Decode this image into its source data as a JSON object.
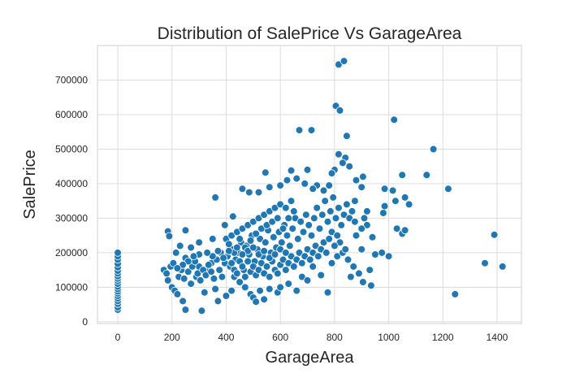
{
  "chart_data": {
    "type": "scatter",
    "title": "Distribution of SalePrice Vs GarageArea",
    "xlabel": "GarageArea",
    "ylabel": "SalePrice",
    "xlim": [
      -75,
      1490
    ],
    "ylim": [
      -5000,
      800000
    ],
    "xticks": [
      0,
      200,
      400,
      600,
      800,
      1000,
      1200,
      1400
    ],
    "yticks": [
      0,
      100000,
      200000,
      300000,
      400000,
      500000,
      600000,
      700000
    ],
    "grid": true,
    "point_color": "#1f77b4",
    "points": [
      [
        0,
        35000
      ],
      [
        0,
        42000
      ],
      [
        0,
        52000
      ],
      [
        0,
        60000
      ],
      [
        0,
        68000
      ],
      [
        0,
        75000
      ],
      [
        0,
        82000
      ],
      [
        0,
        88000
      ],
      [
        0,
        95000
      ],
      [
        0,
        102000
      ],
      [
        0,
        110000
      ],
      [
        0,
        118000
      ],
      [
        0,
        125000
      ],
      [
        0,
        132000
      ],
      [
        0,
        140000
      ],
      [
        0,
        148000
      ],
      [
        0,
        158000
      ],
      [
        0,
        168000
      ],
      [
        0,
        180000
      ],
      [
        0,
        190000
      ],
      [
        0,
        200000
      ],
      [
        815,
        745000
      ],
      [
        835,
        755000
      ],
      [
        805,
        625000
      ],
      [
        820,
        612000
      ],
      [
        1020,
        585000
      ],
      [
        670,
        555000
      ],
      [
        715,
        555000
      ],
      [
        845,
        538000
      ],
      [
        1165,
        500000
      ],
      [
        815,
        485000
      ],
      [
        840,
        475000
      ],
      [
        830,
        460000
      ],
      [
        855,
        450000
      ],
      [
        800,
        440000
      ],
      [
        700,
        440000
      ],
      [
        790,
        430000
      ],
      [
        640,
        438000
      ],
      [
        545,
        432000
      ],
      [
        1050,
        425000
      ],
      [
        1140,
        425000
      ],
      [
        1220,
        385000
      ],
      [
        1390,
        252000
      ],
      [
        1355,
        170000
      ],
      [
        1420,
        160000
      ],
      [
        1245,
        80000
      ],
      [
        1015,
        380000
      ],
      [
        985,
        385000
      ],
      [
        1060,
        360000
      ],
      [
        1025,
        350000
      ],
      [
        1075,
        340000
      ],
      [
        1030,
        270000
      ],
      [
        1050,
        255000
      ],
      [
        1060,
        265000
      ],
      [
        985,
        335000
      ],
      [
        980,
        315000
      ],
      [
        920,
        280000
      ],
      [
        940,
        245000
      ],
      [
        975,
        200000
      ],
      [
        1000,
        190000
      ],
      [
        950,
        195000
      ],
      [
        900,
        210000
      ],
      [
        930,
        150000
      ],
      [
        935,
        105000
      ],
      [
        905,
        115000
      ],
      [
        920,
        320000
      ],
      [
        905,
        420000
      ],
      [
        880,
        410000
      ],
      [
        900,
        390000
      ],
      [
        875,
        350000
      ],
      [
        360,
        360000
      ],
      [
        395,
        280000
      ],
      [
        425,
        305000
      ],
      [
        460,
        385000
      ],
      [
        485,
        375000
      ],
      [
        520,
        375000
      ],
      [
        560,
        390000
      ],
      [
        600,
        395000
      ],
      [
        625,
        410000
      ],
      [
        660,
        415000
      ],
      [
        690,
        400000
      ],
      [
        735,
        395000
      ],
      [
        760,
        380000
      ],
      [
        780,
        395000
      ],
      [
        720,
        385000
      ],
      [
        185,
        262000
      ],
      [
        190,
        248000
      ],
      [
        250,
        265000
      ],
      [
        300,
        230000
      ],
      [
        250,
        185000
      ],
      [
        215,
        200000
      ],
      [
        230,
        220000
      ],
      [
        270,
        215000
      ],
      [
        300,
        160000
      ],
      [
        350,
        240000
      ],
      [
        380,
        200000
      ],
      [
        345,
        170000
      ],
      [
        330,
        155000
      ],
      [
        170,
        150000
      ],
      [
        185,
        120000
      ],
      [
        200,
        100000
      ],
      [
        210,
        90000
      ],
      [
        220,
        80000
      ],
      [
        240,
        60000
      ],
      [
        250,
        35000
      ],
      [
        270,
        110000
      ],
      [
        290,
        130000
      ],
      [
        310,
        32000
      ],
      [
        320,
        85000
      ],
      [
        370,
        60000
      ],
      [
        360,
        95000
      ],
      [
        400,
        75000
      ],
      [
        420,
        90000
      ],
      [
        430,
        130000
      ],
      [
        450,
        115000
      ],
      [
        470,
        100000
      ],
      [
        490,
        80000
      ],
      [
        500,
        70000
      ],
      [
        510,
        58000
      ],
      [
        525,
        90000
      ],
      [
        540,
        65000
      ],
      [
        560,
        95000
      ],
      [
        590,
        85000
      ],
      [
        600,
        100000
      ],
      [
        630,
        110000
      ],
      [
        660,
        90000
      ],
      [
        680,
        130000
      ],
      [
        700,
        120000
      ],
      [
        720,
        160000
      ],
      [
        750,
        135000
      ],
      [
        775,
        85000
      ],
      [
        790,
        170000
      ],
      [
        810,
        190000
      ],
      [
        830,
        200000
      ],
      [
        850,
        180000
      ],
      [
        870,
        160000
      ],
      [
        890,
        140000
      ],
      [
        860,
        130000
      ],
      [
        840,
        210000
      ],
      [
        820,
        230000
      ],
      [
        880,
        250000
      ],
      [
        900,
        270000
      ],
      [
        910,
        300000
      ],
      [
        180,
        140000
      ],
      [
        195,
        160000
      ],
      [
        205,
        170000
      ],
      [
        225,
        130000
      ],
      [
        235,
        150000
      ],
      [
        245,
        125000
      ],
      [
        260,
        145000
      ],
      [
        275,
        160000
      ],
      [
        285,
        175000
      ],
      [
        295,
        140000
      ],
      [
        305,
        120000
      ],
      [
        315,
        150000
      ],
      [
        325,
        135000
      ],
      [
        335,
        165000
      ],
      [
        345,
        145000
      ],
      [
        355,
        125000
      ],
      [
        365,
        180000
      ],
      [
        375,
        150000
      ],
      [
        385,
        130000
      ],
      [
        395,
        170000
      ],
      [
        405,
        190000
      ],
      [
        415,
        160000
      ],
      [
        425,
        210000
      ],
      [
        435,
        180000
      ],
      [
        445,
        200000
      ],
      [
        455,
        230000
      ],
      [
        465,
        150000
      ],
      [
        475,
        220000
      ],
      [
        485,
        195000
      ],
      [
        495,
        250000
      ],
      [
        505,
        175000
      ],
      [
        515,
        210000
      ],
      [
        525,
        240000
      ],
      [
        535,
        190000
      ],
      [
        545,
        230000
      ],
      [
        555,
        265000
      ],
      [
        565,
        200000
      ],
      [
        575,
        245000
      ],
      [
        585,
        215000
      ],
      [
        595,
        260000
      ],
      [
        605,
        230000
      ],
      [
        615,
        280000
      ],
      [
        625,
        250000
      ],
      [
        635,
        220000
      ],
      [
        645,
        270000
      ],
      [
        655,
        300000
      ],
      [
        665,
        240000
      ],
      [
        675,
        290000
      ],
      [
        685,
        260000
      ],
      [
        695,
        310000
      ],
      [
        705,
        280000
      ],
      [
        715,
        250000
      ],
      [
        725,
        300000
      ],
      [
        735,
        330000
      ],
      [
        745,
        270000
      ],
      [
        755,
        310000
      ],
      [
        765,
        350000
      ],
      [
        775,
        290000
      ],
      [
        785,
        320000
      ],
      [
        795,
        360000
      ],
      [
        805,
        300000
      ],
      [
        815,
        330000
      ],
      [
        825,
        280000
      ],
      [
        835,
        310000
      ],
      [
        845,
        340000
      ],
      [
        855,
        300000
      ],
      [
        865,
        320000
      ],
      [
        875,
        290000
      ],
      [
        400,
        240000
      ],
      [
        410,
        225000
      ],
      [
        420,
        250000
      ],
      [
        430,
        200000
      ],
      [
        440,
        260000
      ],
      [
        450,
        240000
      ],
      [
        460,
        270000
      ],
      [
        470,
        215000
      ],
      [
        480,
        280000
      ],
      [
        490,
        235000
      ],
      [
        500,
        290000
      ],
      [
        510,
        255000
      ],
      [
        520,
        300000
      ],
      [
        530,
        270000
      ],
      [
        540,
        310000
      ],
      [
        550,
        280000
      ],
      [
        560,
        320000
      ],
      [
        570,
        290000
      ],
      [
        580,
        330000
      ],
      [
        590,
        300000
      ],
      [
        600,
        340000
      ],
      [
        610,
        270000
      ],
      [
        620,
        330000
      ],
      [
        630,
        300000
      ],
      [
        640,
        350000
      ],
      [
        650,
        320000
      ],
      [
        420,
        170000
      ],
      [
        430,
        150000
      ],
      [
        440,
        140000
      ],
      [
        450,
        175000
      ],
      [
        460,
        160000
      ],
      [
        470,
        130000
      ],
      [
        480,
        175000
      ],
      [
        490,
        145000
      ],
      [
        500,
        160000
      ],
      [
        510,
        135000
      ],
      [
        520,
        150000
      ],
      [
        530,
        170000
      ],
      [
        540,
        140000
      ],
      [
        550,
        160000
      ],
      [
        560,
        130000
      ],
      [
        570,
        175000
      ],
      [
        580,
        150000
      ],
      [
        590,
        140000
      ],
      [
        600,
        165000
      ],
      [
        610,
        180000
      ],
      [
        620,
        150000
      ],
      [
        630,
        170000
      ],
      [
        640,
        190000
      ],
      [
        650,
        160000
      ],
      [
        660,
        180000
      ],
      [
        670,
        200000
      ],
      [
        680,
        170000
      ],
      [
        690,
        190000
      ],
      [
        700,
        210000
      ],
      [
        710,
        180000
      ],
      [
        720,
        200000
      ],
      [
        730,
        220000
      ],
      [
        740,
        190000
      ],
      [
        750,
        210000
      ],
      [
        760,
        230000
      ],
      [
        770,
        200000
      ],
      [
        780,
        240000
      ],
      [
        790,
        260000
      ],
      [
        800,
        220000
      ],
      [
        810,
        250000
      ],
      [
        480,
        205000
      ],
      [
        500,
        215000
      ],
      [
        520,
        195000
      ],
      [
        540,
        205000
      ],
      [
        560,
        185000
      ],
      [
        580,
        195000
      ],
      [
        600,
        210000
      ],
      [
        620,
        200000
      ],
      [
        440,
        215000
      ],
      [
        460,
        195000
      ],
      [
        410,
        205000
      ],
      [
        390,
        185000
      ],
      [
        370,
        205000
      ],
      [
        350,
        190000
      ],
      [
        330,
        200000
      ],
      [
        300,
        195000
      ],
      [
        280,
        190000
      ],
      [
        260,
        175000
      ],
      [
        240,
        165000
      ],
      [
        220,
        155000
      ]
    ]
  }
}
